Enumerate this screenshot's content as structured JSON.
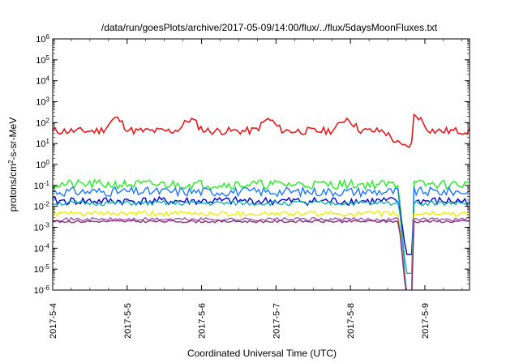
{
  "chart_data": {
    "type": "line",
    "title": "/data/run/goesPlots/archive/2017-05-09/14:00/flux/../flux/5daysMoonFluxes.txt",
    "xlabel": "Coordinated Universal Time (UTC)",
    "ylabel_base": "protons/cm",
    "ylabel_sup": "2",
    "ylabel_rest": "-s-sr-MeV",
    "yscale": "log",
    "ylim_exp": [
      -6,
      6
    ],
    "ytick_base": "10",
    "ytick_exps": [
      "-6",
      "-5",
      "-4",
      "-3",
      "-2",
      "-1",
      "0",
      "1",
      "2",
      "3",
      "4",
      "5",
      "6"
    ],
    "xlim": [
      0,
      5.6
    ],
    "xtick_labels": [
      "2017-5-4",
      "2017-5-5",
      "2017-5-6",
      "2017-5-7",
      "2017-5-8",
      "2017-5-9"
    ],
    "xtick_values": [
      0,
      1,
      2,
      3,
      4,
      5
    ],
    "grid": false,
    "dropout": {
      "start": 4.65,
      "end": 4.85
    },
    "series": [
      {
        "color": "#e41a1c",
        "base_log": 1.6,
        "amp": 0.35,
        "noise": 0.18,
        "seed": 11,
        "bumps": [
          [
            0.85,
            0.6
          ],
          [
            1.85,
            0.55
          ],
          [
            2.9,
            0.55
          ],
          [
            3.95,
            0.6
          ],
          [
            4.88,
            0.75
          ]
        ],
        "decay": [
          4.45,
          4.85,
          0.3
        ]
      },
      {
        "color": "#22ee22",
        "base_log": -0.95,
        "amp": 0.0,
        "noise": 0.22,
        "seed": 21,
        "drop_to": -6.3
      },
      {
        "color": "#1e78ff",
        "base_log": -1.3,
        "amp": 0.0,
        "noise": 0.22,
        "seed": 31,
        "drop_to": -6.3
      },
      {
        "color": "#0000cc",
        "base_log": -1.75,
        "amp": 0.0,
        "noise": 0.2,
        "seed": 41,
        "drop_to": -4.3
      },
      {
        "color": "#1ab0b0",
        "base_log": -1.85,
        "amp": 0.0,
        "noise": 0.12,
        "seed": 51,
        "drop_to": -5.2
      },
      {
        "color": "#eeee00",
        "base_log": -2.35,
        "amp": 0.0,
        "noise": 0.12,
        "seed": 61,
        "drop_to": -6.3
      },
      {
        "color": "#9b59b6",
        "base_log": -2.62,
        "amp": 0.0,
        "noise": 0.08,
        "seed": 71,
        "drop_to": -6.3
      },
      {
        "color": "#8b2f6e",
        "base_log": -2.72,
        "amp": 0.0,
        "noise": 0.06,
        "seed": 81,
        "drop_to": -6.3
      }
    ]
  }
}
